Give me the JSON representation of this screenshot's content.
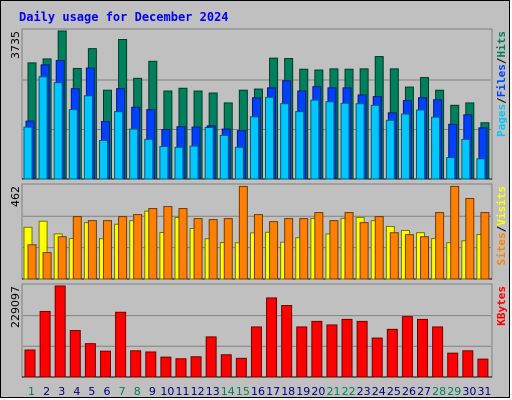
{
  "colors": {
    "background": "#c0c0c0",
    "title": "#0000ff",
    "hits": "#00805c",
    "files": "#0040ff",
    "pages": "#00c8ff",
    "visits": "#ffff00",
    "sites": "#ff8000",
    "kbytes": "#ff0000",
    "weekday_label": "#000080",
    "weekend_label": "#00805c",
    "separator": "#000000"
  },
  "chart_data": {
    "type": "bar",
    "title": "Daily usage for December 2024",
    "categories": [
      "1",
      "2",
      "3",
      "4",
      "5",
      "6",
      "7",
      "8",
      "9",
      "10",
      "11",
      "12",
      "13",
      "14",
      "15",
      "16",
      "17",
      "18",
      "19",
      "20",
      "21",
      "22",
      "23",
      "24",
      "25",
      "26",
      "27",
      "28",
      "29",
      "30",
      "31"
    ],
    "weekend_days": [
      "1",
      "7",
      "8",
      "14",
      "15",
      "21",
      "22",
      "28",
      "29"
    ],
    "panels": [
      {
        "ymax_label": "3735",
        "ylim": [
          0,
          3735
        ],
        "ylabel_parts": [
          "Pages",
          "/",
          "Files",
          "/",
          "Hits"
        ],
        "ylabel_colors": [
          "#00c8ff",
          "#000000",
          "#0040ff",
          "#000000",
          "#00805c"
        ],
        "series": [
          {
            "name": "Hits",
            "values": [
              2930,
              3030,
              3735,
              2790,
              3290,
              2240,
              3520,
              2540,
              2970,
              2220,
              2290,
              2220,
              2170,
              1920,
              2240,
              2270,
              3050,
              3040,
              2770,
              2750,
              2780,
              2770,
              2780,
              3090,
              2780,
              2320,
              2560,
              2240,
              1860,
              1920,
              1420
            ]
          },
          {
            "name": "Files",
            "values": [
              1460,
              2880,
              2990,
              2280,
              2800,
              1450,
              2280,
              1810,
              1750,
              1250,
              1320,
              1310,
              1340,
              1260,
              1220,
              2050,
              2300,
              2480,
              2220,
              2330,
              2300,
              2300,
              2120,
              2080,
              1670,
              1980,
              2050,
              2000,
              1380,
              1620,
              1290
            ]
          },
          {
            "name": "Pages",
            "values": [
              1310,
              2580,
              2430,
              1750,
              2100,
              970,
              1700,
              1260,
              1000,
              820,
              800,
              830,
              1300,
              1100,
              800,
              1570,
              2060,
              1900,
              1700,
              1990,
              1950,
              1910,
              1900,
              1860,
              1480,
              1640,
              1740,
              1560,
              540,
              1000,
              510
            ]
          }
        ]
      },
      {
        "ymax_label": "462",
        "ylim": [
          0,
          462
        ],
        "ylabel_parts": [
          "Sites",
          "/",
          "Visits"
        ],
        "ylabel_colors": [
          "#ff8000",
          "#000000",
          "#ffff00"
        ],
        "series": [
          {
            "name": "Visits",
            "values": [
              257,
              287,
              224,
              201,
              280,
              200,
              272,
              290,
              337,
              231,
              306,
              251,
              200,
              181,
              180,
              229,
              232,
              183,
              205,
              301,
              224,
              301,
              306,
              290,
              261,
              241,
              230,
              201,
              180,
              190,
              221
            ]
          },
          {
            "name": "Sites",
            "values": [
              170,
              131,
              210,
              310,
              290,
              290,
              310,
              320,
              350,
              360,
              350,
              300,
              295,
              300,
              460,
              320,
              285,
              300,
              300,
              330,
              290,
              330,
              280,
              310,
              230,
              220,
              210,
              330,
              460,
              400,
              330
            ]
          }
        ]
      },
      {
        "ymax_label": "229097",
        "ylim": [
          0,
          229097
        ],
        "ylabel_parts": [
          "KBytes"
        ],
        "ylabel_colors": [
          "#ff0000"
        ],
        "series": [
          {
            "name": "KBytes",
            "values": [
              68000,
              165000,
              229097,
              117000,
              84000,
              65000,
              163000,
              66000,
              63000,
              50000,
              46000,
              51000,
              101000,
              56000,
              47000,
              126000,
              199000,
              180000,
              126000,
              140000,
              131000,
              145000,
              140000,
              98000,
              120000,
              152000,
              145000,
              126000,
              60000,
              66000,
              45000
            ]
          }
        ]
      }
    ]
  }
}
